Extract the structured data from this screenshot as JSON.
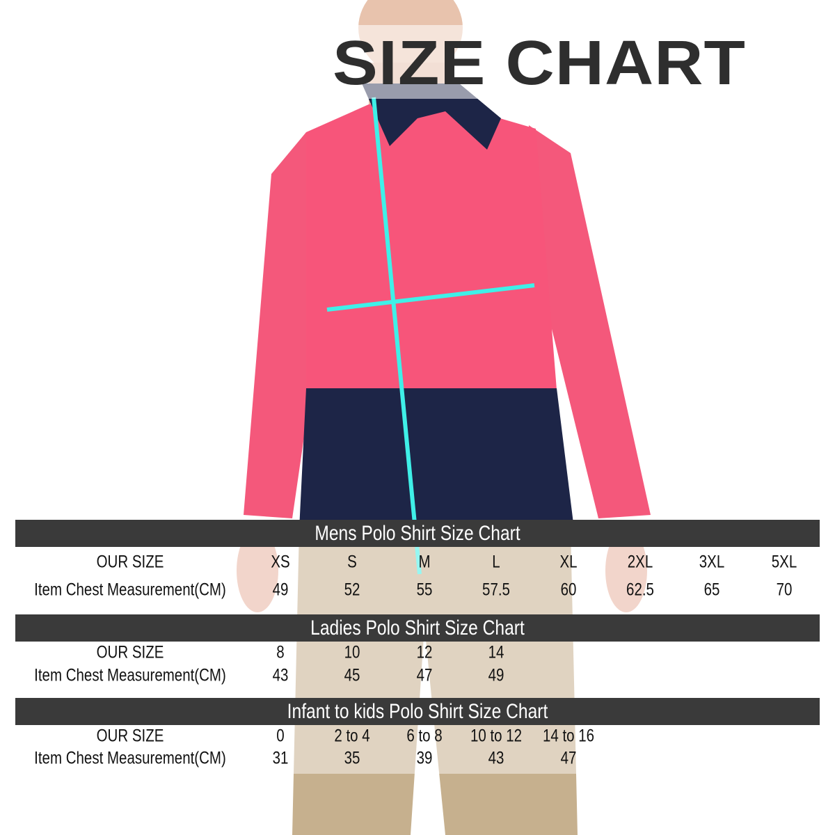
{
  "title": "SIZE CHART",
  "colors": {
    "bar": "#3a3a3a",
    "measure_line": "#3ff0e8",
    "shirt": "#f7557a",
    "navy": "#1d2547",
    "pants": "#c6b08e"
  },
  "row_labels": {
    "size": "OUR SIZE",
    "chest": "Item Chest Measurement(CM)"
  },
  "tables": [
    {
      "heading": "Mens Polo Shirt Size Chart",
      "sizes": [
        "XS",
        "S",
        "M",
        "L",
        "XL",
        "2XL",
        "3XL",
        "5XL"
      ],
      "chest": [
        "49",
        "52",
        "55",
        "57.5",
        "60",
        "62.5",
        "65",
        "70"
      ]
    },
    {
      "heading": "Ladies Polo Shirt Size Chart",
      "sizes": [
        "8",
        "10",
        "12",
        "14"
      ],
      "chest": [
        "43",
        "45",
        "47",
        "49"
      ]
    },
    {
      "heading": "Infant to kids Polo Shirt Size Chart",
      "sizes": [
        "0",
        "2 to 4",
        "6 to 8",
        "10 to 12",
        "14 to 16"
      ],
      "chest": [
        "31",
        "35",
        "39",
        "43",
        "47"
      ]
    }
  ]
}
